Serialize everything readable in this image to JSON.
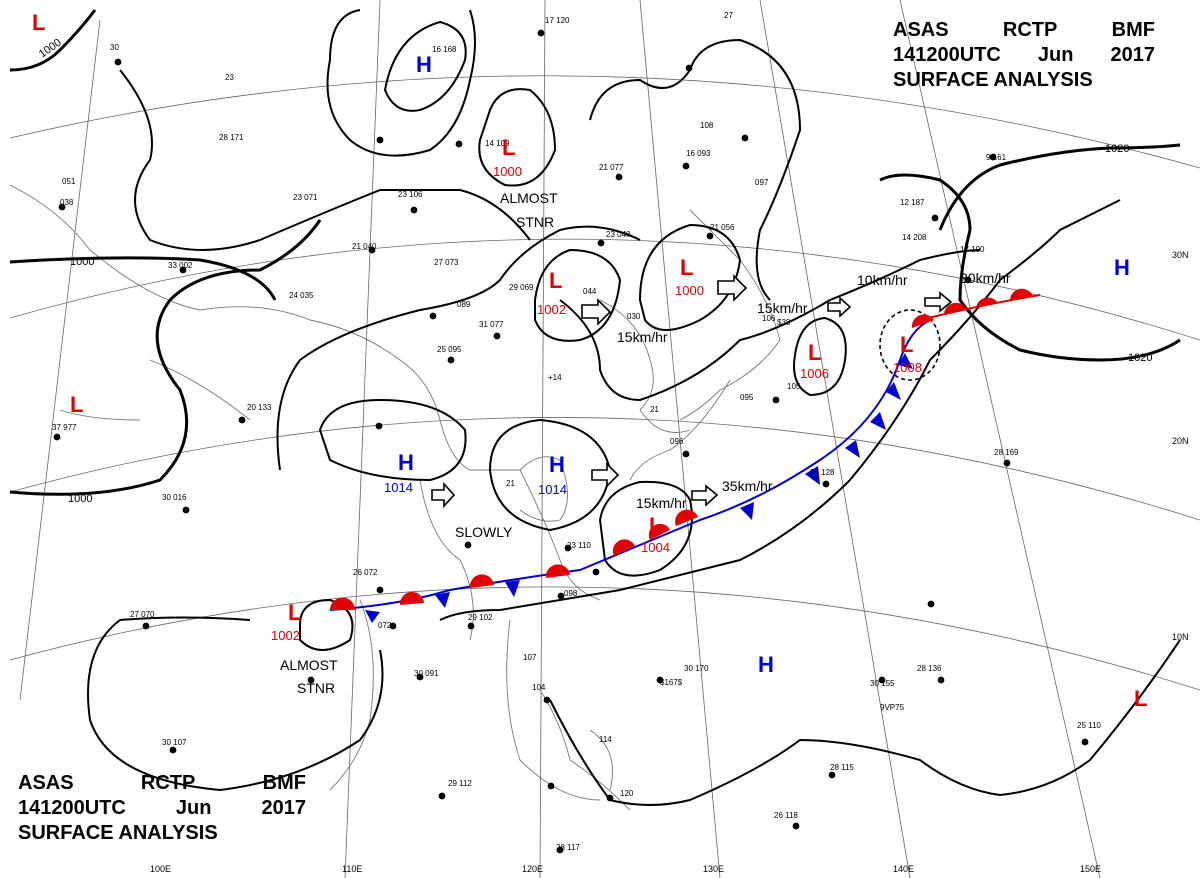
{
  "header_top": {
    "agency": "ASAS",
    "station": "RCTP",
    "office": "BMF",
    "time": "141200UTC",
    "month": "Jun",
    "year": "2017",
    "title": "SURFACE ANALYSIS"
  },
  "header_bottom": {
    "agency": "ASAS",
    "station": "RCTP",
    "office": "BMF",
    "time": "141200UTC",
    "month": "Jun",
    "year": "2017",
    "title": "SURFACE ANALYSIS"
  },
  "colors": {
    "low": "#e00000",
    "high": "#0000cc",
    "ink": "#000000",
    "grid": "#555555",
    "warm_front": "#e00000",
    "cold_front": "#0000cc"
  },
  "isobar_labels": [
    "1000",
    "1000",
    "1000",
    "1020",
    "1020"
  ],
  "pressure_centers": [
    {
      "type": "L",
      "value": ""
    },
    {
      "type": "H",
      "value": ""
    },
    {
      "type": "L",
      "value": "1000"
    },
    {
      "type": "L",
      "value": "1002"
    },
    {
      "type": "L",
      "value": "1000"
    },
    {
      "type": "L",
      "value": "1006"
    },
    {
      "type": "L",
      "value": "1008"
    },
    {
      "type": "H",
      "value": ""
    },
    {
      "type": "L",
      "value": ""
    },
    {
      "type": "H",
      "value": "1014"
    },
    {
      "type": "H",
      "value": "1014"
    },
    {
      "type": "L",
      "value": "1004"
    },
    {
      "type": "L",
      "value": "1002"
    },
    {
      "type": "H",
      "value": ""
    },
    {
      "type": "L",
      "value": ""
    }
  ],
  "movement_labels": [
    "ALMOST",
    "STNR",
    "15km/hr",
    "15km/hr",
    "10km/hr",
    "30km/hr",
    "SLOWLY",
    "15km/hr",
    "35km/hr",
    "ALMOST",
    "STNR"
  ],
  "latitude_labels": [
    "30N",
    "20N",
    "10N"
  ],
  "longitude_labels": [
    "100E",
    "110E",
    "120E",
    "130E",
    "140E",
    "150E"
  ]
}
